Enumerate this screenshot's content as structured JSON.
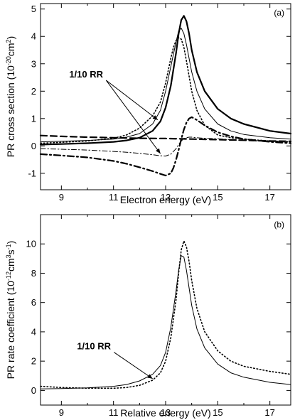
{
  "chart_data": [
    {
      "type": "line",
      "panel_label": "(a)",
      "xlabel": "Electron energy (eV)",
      "ylabel": "PR cross section (10",
      "ylabel_exp": "-20",
      "ylabel_unit": "cm",
      "ylabel_unit_exp": "2",
      "ylabel_close": ")",
      "xlim": [
        8.2,
        17.8
      ],
      "ylim": [
        -1.6,
        5.2
      ],
      "xticks": [
        9,
        11,
        13,
        15,
        17
      ],
      "yticks": [
        -1,
        0,
        1,
        2,
        3,
        4,
        5
      ],
      "annotation": {
        "text": "1/10 RR",
        "x": 9.3,
        "y": 2.5,
        "targets": [
          [
            12.7,
            0.95
          ],
          [
            12.8,
            -0.28
          ]
        ]
      },
      "series": [
        {
          "style": "solid-thick",
          "x": [
            8.2,
            9,
            10,
            11,
            11.5,
            12,
            12.5,
            12.8,
            13,
            13.2,
            13.4,
            13.5,
            13.6,
            13.7,
            13.8,
            13.9,
            14,
            14.2,
            14.5,
            15,
            15.5,
            16,
            17,
            17.8
          ],
          "y": [
            0.05,
            0.07,
            0.1,
            0.15,
            0.2,
            0.3,
            0.55,
            0.9,
            1.4,
            2.2,
            3.4,
            4.1,
            4.6,
            4.75,
            4.55,
            4.1,
            3.5,
            2.7,
            2.0,
            1.35,
            1.0,
            0.8,
            0.55,
            0.45
          ]
        },
        {
          "style": "solid-thin",
          "x": [
            8.2,
            9,
            10,
            11,
            11.5,
            12,
            12.5,
            12.8,
            13,
            13.2,
            13.4,
            13.5,
            13.6,
            13.7,
            13.8,
            13.9,
            14,
            14.2,
            14.5,
            15,
            15.5,
            16,
            17,
            17.8
          ],
          "y": [
            0.15,
            0.17,
            0.2,
            0.25,
            0.32,
            0.45,
            0.8,
            1.3,
            2.0,
            2.9,
            3.8,
            4.2,
            4.3,
            4.1,
            3.7,
            3.2,
            2.7,
            2.0,
            1.35,
            0.8,
            0.55,
            0.42,
            0.3,
            0.25
          ]
        },
        {
          "style": "dotted",
          "x": [
            8.2,
            9,
            10,
            11,
            11.5,
            12,
            12.5,
            12.8,
            13,
            13.2,
            13.3,
            13.4,
            13.5,
            13.6,
            13.7,
            13.8,
            13.9,
            14,
            14.2,
            14.5,
            15,
            15.5,
            16,
            17,
            17.8
          ],
          "y": [
            0.1,
            0.13,
            0.18,
            0.28,
            0.4,
            0.65,
            1.1,
            1.6,
            2.3,
            3.2,
            3.6,
            3.85,
            3.95,
            3.9,
            3.6,
            3.1,
            2.55,
            2.0,
            1.3,
            0.75,
            0.4,
            0.3,
            0.25,
            0.18,
            0.15
          ]
        },
        {
          "style": "dashed-thick",
          "x": [
            8.2,
            9,
            10,
            11,
            12,
            13,
            13.5,
            14,
            15,
            16,
            17,
            17.8
          ],
          "y": [
            0.38,
            0.35,
            0.32,
            0.3,
            0.28,
            0.27,
            0.26,
            0.25,
            0.23,
            0.21,
            0.18,
            0.17
          ]
        },
        {
          "style": "dashdot-thick",
          "x": [
            8.2,
            9,
            10,
            11,
            11.5,
            12,
            12.5,
            12.8,
            13,
            13.2,
            13.3,
            13.4,
            13.5,
            13.6,
            13.7,
            13.8,
            13.9,
            14,
            14.2,
            14.5,
            15,
            15.5,
            16,
            17,
            17.8
          ],
          "y": [
            -0.3,
            -0.35,
            -0.42,
            -0.55,
            -0.65,
            -0.78,
            -0.92,
            -1.02,
            -1.08,
            -1.0,
            -0.8,
            -0.5,
            -0.15,
            0.25,
            0.6,
            0.85,
            1.0,
            1.05,
            0.95,
            0.75,
            0.5,
            0.35,
            0.25,
            0.15,
            0.1
          ]
        },
        {
          "style": "dashdot-thin",
          "x": [
            8.2,
            9,
            10,
            11,
            11.5,
            12,
            12.5,
            12.8,
            13,
            13.2,
            13.4,
            13.5,
            13.6,
            13.7,
            13.8,
            13.9,
            14,
            14.2,
            14.5,
            15,
            15.5,
            16,
            17,
            17.8
          ],
          "y": [
            -0.1,
            -0.12,
            -0.15,
            -0.2,
            -0.23,
            -0.27,
            -0.32,
            -0.36,
            -0.37,
            -0.3,
            -0.1,
            0.05,
            0.18,
            0.27,
            0.3,
            0.32,
            0.32,
            0.3,
            0.28,
            0.26,
            0.23,
            0.2,
            0.16,
            0.14
          ]
        }
      ]
    },
    {
      "type": "line",
      "panel_label": "(b)",
      "xlabel": "Relative energy (eV)",
      "ylabel": "PR rate coefficient (10",
      "ylabel_exp": "-12",
      "ylabel_unit": "cm",
      "ylabel_unit_exp": "3",
      "ylabel_unit2": "s",
      "ylabel_unit2_exp": "-1",
      "ylabel_close": ")",
      "xlim": [
        8.2,
        17.8
      ],
      "ylim": [
        -1,
        12
      ],
      "xticks": [
        9,
        11,
        13,
        15,
        17
      ],
      "yticks": [
        0,
        2,
        4,
        6,
        8,
        10
      ],
      "annotation": {
        "text": "1/10 RR",
        "x": 9.6,
        "y": 2.8,
        "targets": [
          [
            12.5,
            0.8
          ]
        ]
      },
      "series": [
        {
          "style": "solid-thin",
          "x": [
            8.2,
            9,
            10,
            11,
            11.5,
            12,
            12.5,
            12.8,
            13,
            13.2,
            13.4,
            13.5,
            13.6,
            13.7,
            13.8,
            13.9,
            14,
            14.2,
            14.5,
            15,
            15.5,
            16,
            17,
            17.8
          ],
          "y": [
            0.1,
            0.13,
            0.18,
            0.28,
            0.4,
            0.65,
            1.1,
            1.7,
            2.6,
            4.3,
            6.8,
            8.2,
            9.2,
            9.1,
            8.2,
            7.0,
            5.8,
            4.2,
            2.9,
            1.8,
            1.2,
            0.9,
            0.55,
            0.4
          ]
        },
        {
          "style": "dotted",
          "x": [
            8.2,
            9,
            10,
            11,
            11.5,
            12,
            12.5,
            12.8,
            13,
            13.2,
            13.4,
            13.5,
            13.6,
            13.7,
            13.8,
            13.9,
            14,
            14.2,
            14.5,
            15,
            15.5,
            16,
            17,
            17.8
          ],
          "y": [
            0.28,
            0.2,
            0.15,
            0.15,
            0.2,
            0.35,
            0.7,
            1.2,
            2.0,
            3.6,
            6.2,
            8.0,
            9.6,
            10.2,
            9.8,
            8.8,
            7.5,
            5.6,
            4.0,
            2.7,
            2.0,
            1.65,
            1.3,
            1.1
          ]
        }
      ]
    }
  ]
}
